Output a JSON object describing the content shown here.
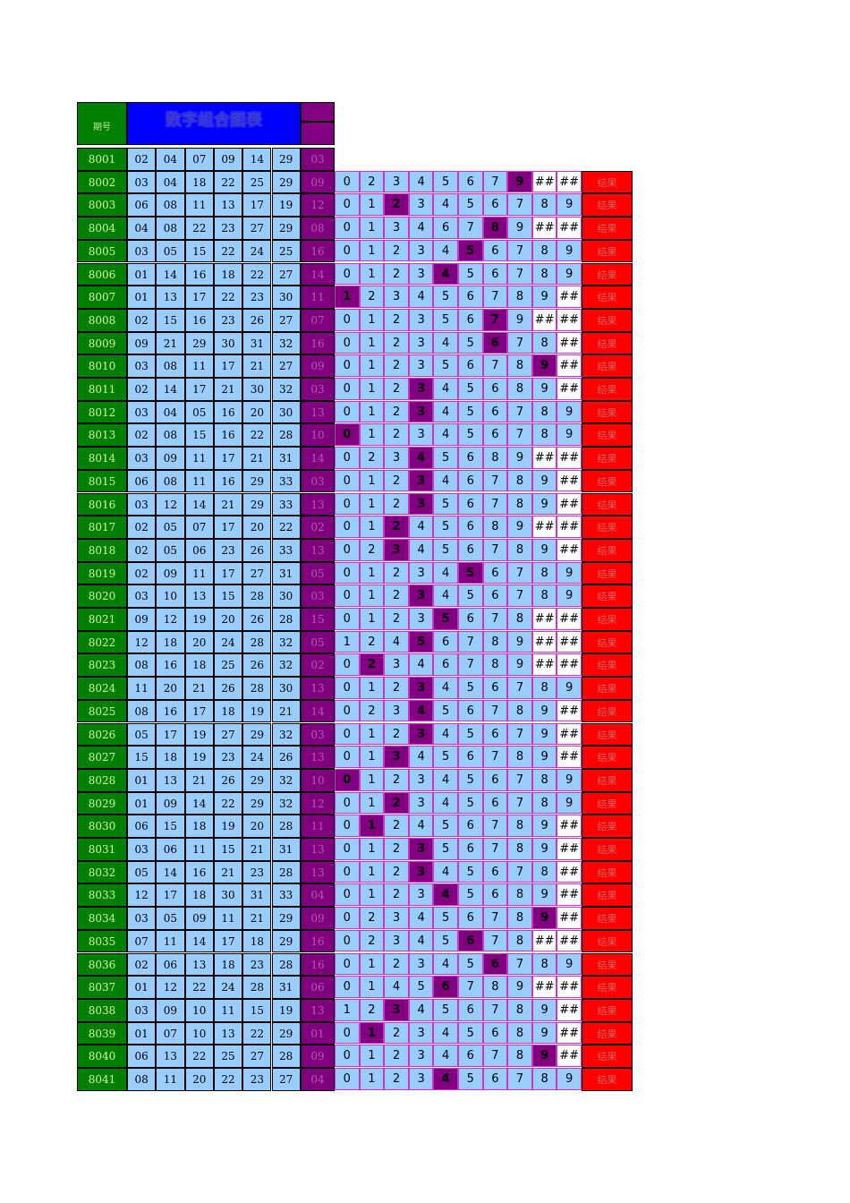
{
  "header": {
    "id_label": "期号",
    "title": "数字组合图表"
  },
  "rows": [
    {
      "id": "8001",
      "nums": [
        "02",
        "04",
        "07",
        "09",
        "14",
        "29"
      ],
      "s": "03",
      "digits": [],
      "hl": -1,
      "r": ""
    },
    {
      "id": "8002",
      "nums": [
        "03",
        "04",
        "18",
        "22",
        "25",
        "29"
      ],
      "s": "09",
      "digits": [
        "0",
        "2",
        "3",
        "4",
        "5",
        "6",
        "7",
        "9",
        "##",
        "##"
      ],
      "hl": 7,
      "r": "结果"
    },
    {
      "id": "8003",
      "nums": [
        "06",
        "08",
        "11",
        "13",
        "17",
        "19"
      ],
      "s": "12",
      "digits": [
        "0",
        "1",
        "2",
        "3",
        "4",
        "5",
        "6",
        "7",
        "8",
        "9"
      ],
      "hl": 2,
      "r": "结果"
    },
    {
      "id": "8004",
      "nums": [
        "04",
        "08",
        "22",
        "23",
        "27",
        "29"
      ],
      "s": "08",
      "digits": [
        "0",
        "1",
        "3",
        "4",
        "6",
        "7",
        "8",
        "9",
        "##",
        "##"
      ],
      "hl": 6,
      "r": "结果"
    },
    {
      "id": "8005",
      "nums": [
        "03",
        "05",
        "15",
        "22",
        "24",
        "25"
      ],
      "s": "16",
      "digits": [
        "0",
        "1",
        "2",
        "3",
        "4",
        "5",
        "6",
        "7",
        "8",
        "9"
      ],
      "hl": 5,
      "r": "结果"
    },
    {
      "id": "8006",
      "nums": [
        "01",
        "14",
        "16",
        "18",
        "22",
        "27"
      ],
      "s": "14",
      "digits": [
        "0",
        "1",
        "2",
        "3",
        "4",
        "5",
        "6",
        "7",
        "8",
        "9"
      ],
      "hl": 4,
      "r": "结果"
    },
    {
      "id": "8007",
      "nums": [
        "01",
        "13",
        "17",
        "22",
        "23",
        "30"
      ],
      "s": "11",
      "digits": [
        "1",
        "2",
        "3",
        "4",
        "5",
        "6",
        "7",
        "8",
        "9",
        "##"
      ],
      "hl": 0,
      "r": "结果"
    },
    {
      "id": "8008",
      "nums": [
        "02",
        "15",
        "16",
        "23",
        "26",
        "27"
      ],
      "s": "07",
      "digits": [
        "0",
        "1",
        "2",
        "3",
        "5",
        "6",
        "7",
        "9",
        "##",
        "##"
      ],
      "hl": 6,
      "r": "结果"
    },
    {
      "id": "8009",
      "nums": [
        "09",
        "21",
        "29",
        "30",
        "31",
        "32"
      ],
      "s": "16",
      "digits": [
        "0",
        "1",
        "2",
        "3",
        "4",
        "5",
        "6",
        "7",
        "8",
        "##"
      ],
      "hl": 6,
      "r": "结果"
    },
    {
      "id": "8010",
      "nums": [
        "03",
        "08",
        "11",
        "17",
        "21",
        "27"
      ],
      "s": "09",
      "digits": [
        "0",
        "1",
        "2",
        "3",
        "5",
        "6",
        "7",
        "8",
        "9",
        "##"
      ],
      "hl": 8,
      "r": "结果"
    },
    {
      "id": "8011",
      "nums": [
        "02",
        "14",
        "17",
        "21",
        "30",
        "32"
      ],
      "s": "03",
      "digits": [
        "0",
        "1",
        "2",
        "3",
        "4",
        "5",
        "6",
        "8",
        "9",
        "##"
      ],
      "hl": 3,
      "r": "结果"
    },
    {
      "id": "8012",
      "nums": [
        "03",
        "04",
        "05",
        "16",
        "20",
        "30"
      ],
      "s": "13",
      "digits": [
        "0",
        "1",
        "2",
        "3",
        "4",
        "5",
        "6",
        "7",
        "8",
        "9"
      ],
      "hl": 3,
      "r": "结果"
    },
    {
      "id": "8013",
      "nums": [
        "02",
        "08",
        "15",
        "16",
        "22",
        "28"
      ],
      "s": "10",
      "digits": [
        "0",
        "1",
        "2",
        "3",
        "4",
        "5",
        "6",
        "7",
        "8",
        "9"
      ],
      "hl": 0,
      "r": "结果"
    },
    {
      "id": "8014",
      "nums": [
        "03",
        "09",
        "11",
        "17",
        "21",
        "31"
      ],
      "s": "14",
      "digits": [
        "0",
        "2",
        "3",
        "4",
        "5",
        "6",
        "8",
        "9",
        "##",
        "##"
      ],
      "hl": 3,
      "r": "结果"
    },
    {
      "id": "8015",
      "nums": [
        "06",
        "08",
        "11",
        "16",
        "29",
        "33"
      ],
      "s": "03",
      "digits": [
        "0",
        "1",
        "2",
        "3",
        "4",
        "6",
        "7",
        "8",
        "9",
        "##"
      ],
      "hl": 3,
      "r": "结果"
    },
    {
      "id": "8016",
      "nums": [
        "03",
        "12",
        "14",
        "21",
        "29",
        "33"
      ],
      "s": "13",
      "digits": [
        "0",
        "1",
        "2",
        "3",
        "5",
        "6",
        "7",
        "8",
        "9",
        "##"
      ],
      "hl": 3,
      "r": "结果"
    },
    {
      "id": "8017",
      "nums": [
        "02",
        "05",
        "07",
        "17",
        "20",
        "22"
      ],
      "s": "02",
      "digits": [
        "0",
        "1",
        "2",
        "4",
        "5",
        "6",
        "8",
        "9",
        "##",
        "##"
      ],
      "hl": 2,
      "r": "结果"
    },
    {
      "id": "8018",
      "nums": [
        "02",
        "05",
        "06",
        "23",
        "26",
        "33"
      ],
      "s": "13",
      "digits": [
        "0",
        "2",
        "3",
        "4",
        "5",
        "6",
        "7",
        "8",
        "9",
        "##"
      ],
      "hl": 2,
      "r": "结果"
    },
    {
      "id": "8019",
      "nums": [
        "02",
        "09",
        "11",
        "17",
        "27",
        "31"
      ],
      "s": "05",
      "digits": [
        "0",
        "1",
        "2",
        "3",
        "4",
        "5",
        "6",
        "7",
        "8",
        "9"
      ],
      "hl": 5,
      "r": "结果"
    },
    {
      "id": "8020",
      "nums": [
        "03",
        "10",
        "13",
        "15",
        "28",
        "30"
      ],
      "s": "03",
      "digits": [
        "0",
        "1",
        "2",
        "3",
        "4",
        "5",
        "6",
        "7",
        "8",
        "9"
      ],
      "hl": 3,
      "r": "结果"
    },
    {
      "id": "8021",
      "nums": [
        "09",
        "12",
        "19",
        "20",
        "26",
        "28"
      ],
      "s": "15",
      "digits": [
        "0",
        "1",
        "2",
        "3",
        "5",
        "6",
        "7",
        "8",
        "##",
        "##"
      ],
      "hl": 4,
      "r": "结果"
    },
    {
      "id": "8022",
      "nums": [
        "12",
        "18",
        "20",
        "24",
        "28",
        "32"
      ],
      "s": "05",
      "digits": [
        "1",
        "2",
        "4",
        "5",
        "6",
        "7",
        "8",
        "9",
        "##",
        "##"
      ],
      "hl": 3,
      "r": "结果"
    },
    {
      "id": "8023",
      "nums": [
        "08",
        "16",
        "18",
        "25",
        "26",
        "32"
      ],
      "s": "02",
      "digits": [
        "0",
        "2",
        "3",
        "4",
        "6",
        "7",
        "8",
        "9",
        "##",
        "##"
      ],
      "hl": 1,
      "r": "结果"
    },
    {
      "id": "8024",
      "nums": [
        "11",
        "20",
        "21",
        "26",
        "28",
        "30"
      ],
      "s": "13",
      "digits": [
        "0",
        "1",
        "2",
        "3",
        "4",
        "5",
        "6",
        "7",
        "8",
        "9"
      ],
      "hl": 3,
      "r": "结果"
    },
    {
      "id": "8025",
      "nums": [
        "08",
        "16",
        "17",
        "18",
        "19",
        "21"
      ],
      "s": "14",
      "digits": [
        "0",
        "2",
        "3",
        "4",
        "5",
        "6",
        "7",
        "8",
        "9",
        "##"
      ],
      "hl": 3,
      "r": "结果"
    },
    {
      "id": "8026",
      "nums": [
        "05",
        "17",
        "19",
        "27",
        "29",
        "32"
      ],
      "s": "03",
      "digits": [
        "0",
        "1",
        "2",
        "3",
        "4",
        "5",
        "6",
        "7",
        "9",
        "##"
      ],
      "hl": 3,
      "r": "结果"
    },
    {
      "id": "8027",
      "nums": [
        "15",
        "18",
        "19",
        "23",
        "24",
        "26"
      ],
      "s": "13",
      "digits": [
        "0",
        "1",
        "3",
        "4",
        "5",
        "6",
        "7",
        "8",
        "9",
        "##"
      ],
      "hl": 2,
      "r": "结果"
    },
    {
      "id": "8028",
      "nums": [
        "01",
        "13",
        "21",
        "26",
        "29",
        "32"
      ],
      "s": "10",
      "digits": [
        "0",
        "1",
        "2",
        "3",
        "4",
        "5",
        "6",
        "7",
        "8",
        "9"
      ],
      "hl": 0,
      "r": "结果"
    },
    {
      "id": "8029",
      "nums": [
        "01",
        "09",
        "14",
        "22",
        "29",
        "32"
      ],
      "s": "12",
      "digits": [
        "0",
        "1",
        "2",
        "3",
        "4",
        "5",
        "6",
        "7",
        "8",
        "9"
      ],
      "hl": 2,
      "r": "结果"
    },
    {
      "id": "8030",
      "nums": [
        "06",
        "15",
        "18",
        "19",
        "20",
        "28"
      ],
      "s": "11",
      "digits": [
        "0",
        "1",
        "2",
        "4",
        "5",
        "6",
        "7",
        "8",
        "9",
        "##"
      ],
      "hl": 1,
      "r": "结果"
    },
    {
      "id": "8031",
      "nums": [
        "03",
        "06",
        "11",
        "15",
        "21",
        "31"
      ],
      "s": "13",
      "digits": [
        "0",
        "1",
        "2",
        "3",
        "5",
        "6",
        "7",
        "8",
        "9",
        "##"
      ],
      "hl": 3,
      "r": "结果"
    },
    {
      "id": "8032",
      "nums": [
        "05",
        "14",
        "16",
        "21",
        "23",
        "28"
      ],
      "s": "13",
      "digits": [
        "0",
        "1",
        "2",
        "3",
        "4",
        "5",
        "6",
        "7",
        "8",
        "##"
      ],
      "hl": 3,
      "r": "结果"
    },
    {
      "id": "8033",
      "nums": [
        "12",
        "17",
        "18",
        "30",
        "31",
        "33"
      ],
      "s": "04",
      "digits": [
        "0",
        "1",
        "2",
        "3",
        "4",
        "5",
        "6",
        "8",
        "9",
        "##"
      ],
      "hl": 4,
      "r": "结果"
    },
    {
      "id": "8034",
      "nums": [
        "03",
        "05",
        "09",
        "11",
        "21",
        "29"
      ],
      "s": "09",
      "digits": [
        "0",
        "2",
        "3",
        "4",
        "5",
        "6",
        "7",
        "8",
        "9",
        "##"
      ],
      "hl": 8,
      "r": "结果"
    },
    {
      "id": "8035",
      "nums": [
        "07",
        "11",
        "14",
        "17",
        "18",
        "29"
      ],
      "s": "16",
      "digits": [
        "0",
        "2",
        "3",
        "4",
        "5",
        "6",
        "7",
        "8",
        "##",
        "##"
      ],
      "hl": 5,
      "r": "结果"
    },
    {
      "id": "8036",
      "nums": [
        "02",
        "06",
        "13",
        "18",
        "23",
        "28"
      ],
      "s": "16",
      "digits": [
        "0",
        "1",
        "2",
        "3",
        "4",
        "5",
        "6",
        "7",
        "8",
        "9"
      ],
      "hl": 6,
      "r": "结果"
    },
    {
      "id": "8037",
      "nums": [
        "01",
        "12",
        "22",
        "24",
        "28",
        "31"
      ],
      "s": "06",
      "digits": [
        "0",
        "1",
        "4",
        "5",
        "6",
        "7",
        "8",
        "9",
        "##",
        "##"
      ],
      "hl": 4,
      "r": "结果"
    },
    {
      "id": "8038",
      "nums": [
        "03",
        "09",
        "10",
        "11",
        "15",
        "19"
      ],
      "s": "13",
      "digits": [
        "1",
        "2",
        "3",
        "4",
        "5",
        "6",
        "7",
        "8",
        "9",
        "##"
      ],
      "hl": 2,
      "r": "结果"
    },
    {
      "id": "8039",
      "nums": [
        "01",
        "07",
        "10",
        "13",
        "22",
        "29"
      ],
      "s": "01",
      "digits": [
        "0",
        "1",
        "2",
        "3",
        "4",
        "5",
        "6",
        "8",
        "9",
        "##"
      ],
      "hl": 1,
      "r": "结果"
    },
    {
      "id": "8040",
      "nums": [
        "06",
        "13",
        "22",
        "25",
        "27",
        "28"
      ],
      "s": "09",
      "digits": [
        "0",
        "1",
        "2",
        "3",
        "4",
        "6",
        "7",
        "8",
        "9",
        "##"
      ],
      "hl": 8,
      "r": "结果"
    },
    {
      "id": "8041",
      "nums": [
        "08",
        "11",
        "20",
        "22",
        "23",
        "27"
      ],
      "s": "04",
      "digits": [
        "0",
        "1",
        "2",
        "3",
        "4",
        "5",
        "6",
        "7",
        "8",
        "9"
      ],
      "hl": 4,
      "r": "结果"
    }
  ]
}
